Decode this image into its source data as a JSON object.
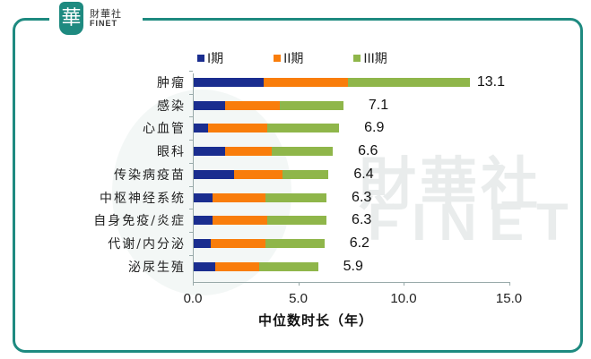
{
  "logo": {
    "badge": "華",
    "name_cn": "財華社",
    "name_en": "FINET"
  },
  "watermark": {
    "cn": "財華社",
    "en": "FINET"
  },
  "colors": {
    "frame": "#1e8a80",
    "phase1": "#1a2d8f",
    "phase2": "#f97d0b",
    "phase3": "#8fb64a"
  },
  "legend": [
    {
      "label": "I期",
      "color": "#1a2d8f"
    },
    {
      "label": "II期",
      "color": "#f97d0b"
    },
    {
      "label": "III期",
      "color": "#8fb64a"
    }
  ],
  "axis": {
    "x_ticks": [
      "0.0",
      "5.0",
      "10.0",
      "15.0"
    ],
    "x_title": "中位数时长（年）"
  },
  "chart_data": {
    "type": "bar",
    "orientation": "horizontal",
    "stacked": true,
    "title": "",
    "xlabel": "中位数时长（年）",
    "ylabel": "",
    "xlim": [
      0,
      15
    ],
    "grid": false,
    "legend_position": "top",
    "categories": [
      "肿瘤",
      "感染",
      "心血管",
      "眼科",
      "传染病疫苗",
      "中枢神经系统",
      "自身免疫/炎症",
      "代谢/内分泌",
      "泌尿生殖"
    ],
    "series": [
      {
        "name": "I期",
        "values": [
          3.3,
          1.5,
          0.7,
          1.5,
          1.9,
          0.9,
          0.9,
          0.8,
          1.0
        ]
      },
      {
        "name": "II期",
        "values": [
          4.0,
          2.6,
          2.8,
          2.2,
          2.3,
          2.5,
          2.6,
          2.6,
          2.1
        ]
      },
      {
        "name": "III期",
        "values": [
          5.8,
          3.0,
          3.4,
          2.9,
          2.2,
          2.9,
          2.8,
          2.8,
          2.8
        ]
      }
    ],
    "totals": [
      "13.1",
      "7.1",
      "6.9",
      "6.6",
      "6.4",
      "6.3",
      "6.3",
      "6.2",
      "5.9"
    ]
  }
}
